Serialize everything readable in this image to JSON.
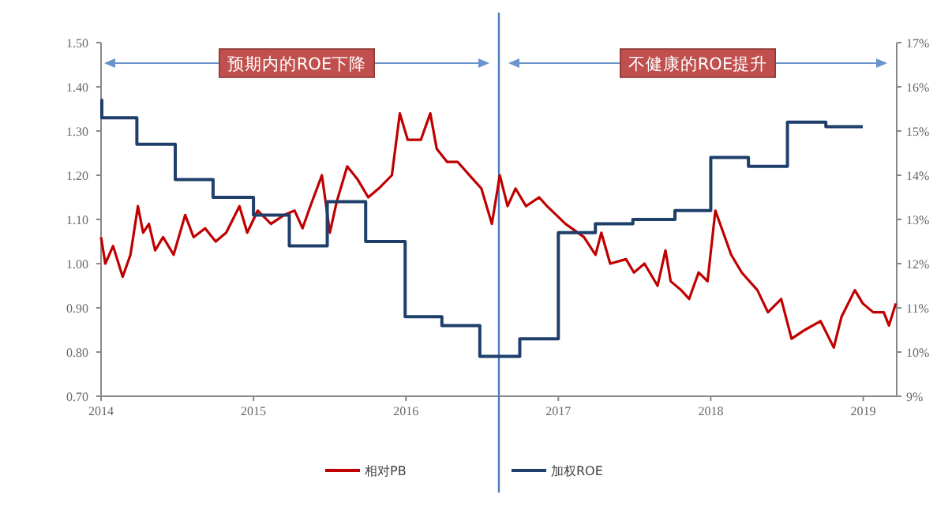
{
  "chart_data": {
    "type": "line",
    "xlim": [
      2014,
      2019.22
    ],
    "xticks": [
      2014,
      2015,
      2016,
      2017,
      2018,
      2019
    ],
    "ylim": [
      0.7,
      1.5
    ],
    "yticks": [
      {
        "value": 0.7,
        "label": "0.70"
      },
      {
        "value": 0.8,
        "label": "0.80"
      },
      {
        "value": 0.9,
        "label": "0.90"
      },
      {
        "value": 1.0,
        "label": "1.00"
      },
      {
        "value": 1.1,
        "label": "1.10"
      },
      {
        "value": 1.2,
        "label": "1.20"
      },
      {
        "value": 1.3,
        "label": "1.30"
      },
      {
        "value": 1.4,
        "label": "1.40"
      },
      {
        "value": 1.5,
        "label": "1.50"
      }
    ],
    "y2lim": [
      9,
      17
    ],
    "y2ticks": [
      {
        "value": 9,
        "label": "9%"
      },
      {
        "value": 10,
        "label": "10%"
      },
      {
        "value": 11,
        "label": "11%"
      },
      {
        "value": 12,
        "label": "12%"
      },
      {
        "value": 13,
        "label": "13%"
      },
      {
        "value": 14,
        "label": "14%"
      },
      {
        "value": 15,
        "label": "15%"
      },
      {
        "value": 16,
        "label": "16%"
      },
      {
        "value": 17,
        "label": "17%"
      }
    ],
    "series": [
      {
        "name": "相对PB",
        "color": "#c00000",
        "x": [
          2014.0,
          2014.028,
          2014.079,
          2014.142,
          2014.193,
          2014.242,
          2014.276,
          2014.314,
          2014.355,
          2014.407,
          2014.476,
          2014.552,
          2014.607,
          2014.683,
          2014.752,
          2014.821,
          2014.908,
          2014.959,
          2015.028,
          2015.115,
          2015.201,
          2015.27,
          2015.322,
          2015.373,
          2015.449,
          2015.501,
          2015.546,
          2015.615,
          2015.684,
          2015.753,
          2015.822,
          2015.908,
          2015.96,
          2016.012,
          2016.098,
          2016.16,
          2016.202,
          2016.271,
          2016.34,
          2016.443,
          2016.495,
          2016.564,
          2016.616,
          2016.667,
          2016.719,
          2016.788,
          2016.874,
          2016.926,
          2017.047,
          2017.168,
          2017.244,
          2017.282,
          2017.34,
          2017.444,
          2017.496,
          2017.565,
          2017.651,
          2017.703,
          2017.737,
          2017.806,
          2017.858,
          2017.92,
          2017.979,
          2018.03,
          2018.082,
          2018.134,
          2018.203,
          2018.306,
          2018.375,
          2018.462,
          2018.53,
          2018.617,
          2018.72,
          2018.807,
          2018.858,
          2018.945,
          2018.997,
          2019.066,
          2019.135,
          2019.169,
          2019.214
        ],
        "values": [
          1.06,
          1.0,
          1.04,
          0.97,
          1.02,
          1.13,
          1.07,
          1.09,
          1.03,
          1.06,
          1.02,
          1.11,
          1.06,
          1.08,
          1.05,
          1.07,
          1.13,
          1.07,
          1.12,
          1.09,
          1.11,
          1.12,
          1.08,
          1.13,
          1.2,
          1.07,
          1.14,
          1.22,
          1.19,
          1.15,
          1.17,
          1.2,
          1.34,
          1.28,
          1.28,
          1.34,
          1.26,
          1.23,
          1.23,
          1.19,
          1.17,
          1.09,
          1.2,
          1.13,
          1.17,
          1.13,
          1.15,
          1.13,
          1.09,
          1.06,
          1.02,
          1.07,
          1.0,
          1.01,
          0.98,
          1.0,
          0.95,
          1.03,
          0.96,
          0.94,
          0.92,
          0.98,
          0.96,
          1.12,
          1.07,
          1.02,
          0.98,
          0.94,
          0.89,
          0.92,
          0.83,
          0.85,
          0.87,
          0.81,
          0.88,
          0.94,
          0.91,
          0.89,
          0.89,
          0.86,
          0.91
        ]
      },
      {
        "name": "加权ROE",
        "type": "step",
        "axis": "y2",
        "color": "#1f3f6b",
        "x": [
          2014.0,
          2014.005,
          2014.235,
          2014.487,
          2014.735,
          2015.0,
          2015.235,
          2015.484,
          2015.736,
          2015.995,
          2016.236,
          2016.485,
          2016.747,
          2017.0,
          2017.243,
          2017.489,
          2017.765,
          2018.0,
          2018.247,
          2018.503,
          2018.755,
          2018.997
        ],
        "values": [
          15.7,
          15.3,
          14.7,
          13.9,
          13.5,
          13.1,
          12.4,
          13.4,
          12.5,
          10.8,
          10.6,
          9.9,
          10.3,
          12.7,
          12.9,
          13.0,
          13.2,
          14.4,
          14.2,
          15.2,
          15.1,
          15.1
        ]
      }
    ],
    "ref_lines": [
      {
        "axis": "x",
        "value": 2016.61,
        "color": "#4a7ebb"
      }
    ],
    "annotations": [
      "预期内的ROE下降",
      "不健康的ROE提升"
    ],
    "legend": "bottom"
  }
}
